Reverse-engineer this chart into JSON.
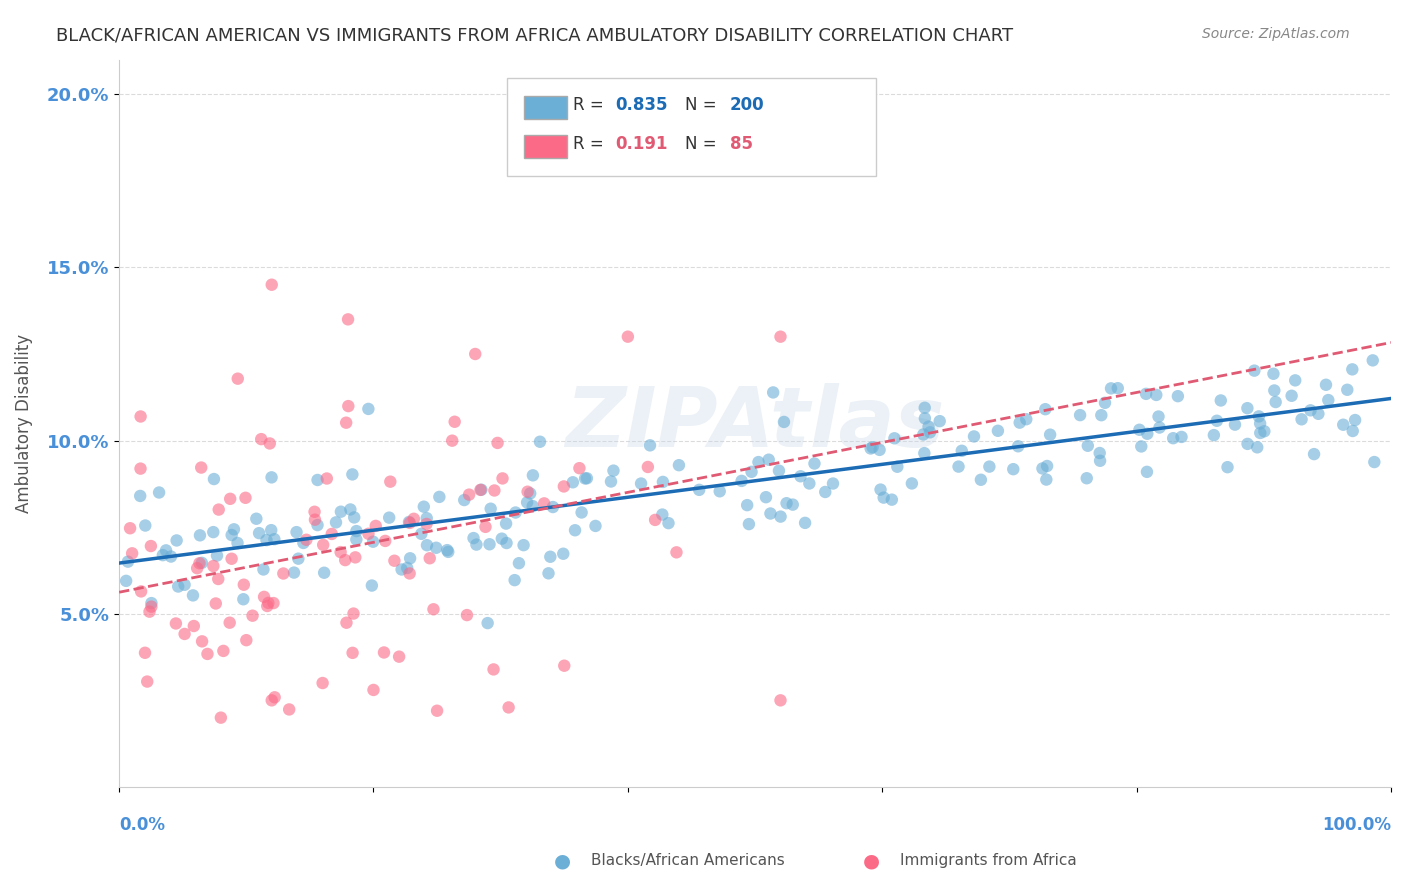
{
  "title": "BLACK/AFRICAN AMERICAN VS IMMIGRANTS FROM AFRICA AMBULATORY DISABILITY CORRELATION CHART",
  "source": "Source: ZipAtlas.com",
  "ylabel": "Ambulatory Disability",
  "blue_R": 0.835,
  "blue_N": 200,
  "pink_R": 0.191,
  "pink_N": 85,
  "legend_label_blue": "Blacks/African Americans",
  "legend_label_pink": "Immigrants from Africa",
  "watermark": "ZIPAtlas",
  "xlim": [
    0.0,
    1.0
  ],
  "ylim": [
    0.0,
    0.21
  ],
  "yticks": [
    0.05,
    0.1,
    0.15,
    0.2
  ],
  "ytick_labels": [
    "5.0%",
    "10.0%",
    "15.0%",
    "20.0%"
  ],
  "background_color": "#ffffff",
  "blue_color": "#6baed6",
  "pink_color": "#fb6a87",
  "blue_line_color": "#1c6bb5",
  "pink_line_color": "#e05a73",
  "grid_color": "#d3d3d3",
  "title_color": "#333333",
  "axis_label_color": "#4a90d9",
  "watermark_color": "#c8d8e8"
}
